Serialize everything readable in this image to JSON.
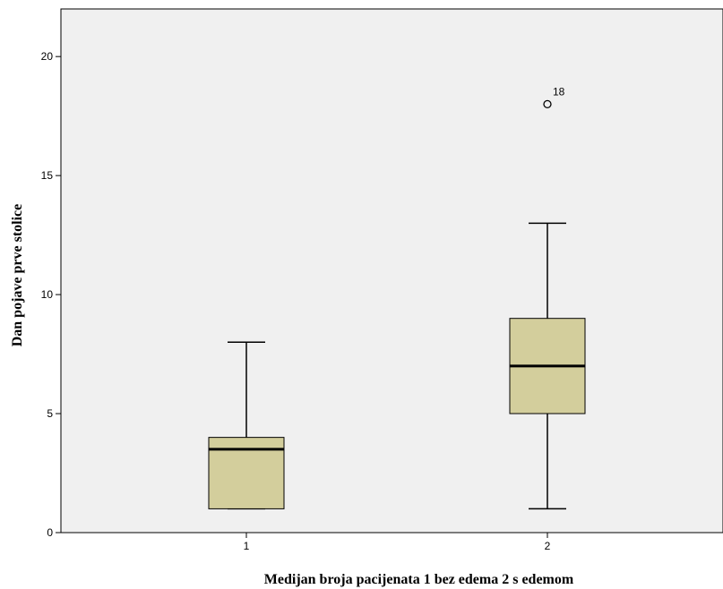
{
  "chart_data": {
    "type": "boxplot",
    "xlabel": "Medijan broja pacijenata 1 bez edema 2 s edemom",
    "ylabel": "Dan pojave prve stolice",
    "ylim": [
      0,
      22
    ],
    "y_ticks": [
      0,
      5,
      10,
      15,
      20
    ],
    "grid": false,
    "categories": [
      "1",
      "2"
    ],
    "boxes": [
      {
        "category": "1",
        "whisker_low": 1,
        "q1": 1,
        "median": 3.5,
        "q3": 4,
        "whisker_high": 8,
        "outliers": []
      },
      {
        "category": "2",
        "whisker_low": 1,
        "q1": 5,
        "median": 7,
        "q3": 9,
        "whisker_high": 13,
        "outliers": [
          {
            "value": 18,
            "label": "18"
          }
        ]
      }
    ],
    "colors": {
      "plot_background": "#f0f0f0",
      "box_fill": "#d3ce9c",
      "stroke": "#000000"
    }
  }
}
